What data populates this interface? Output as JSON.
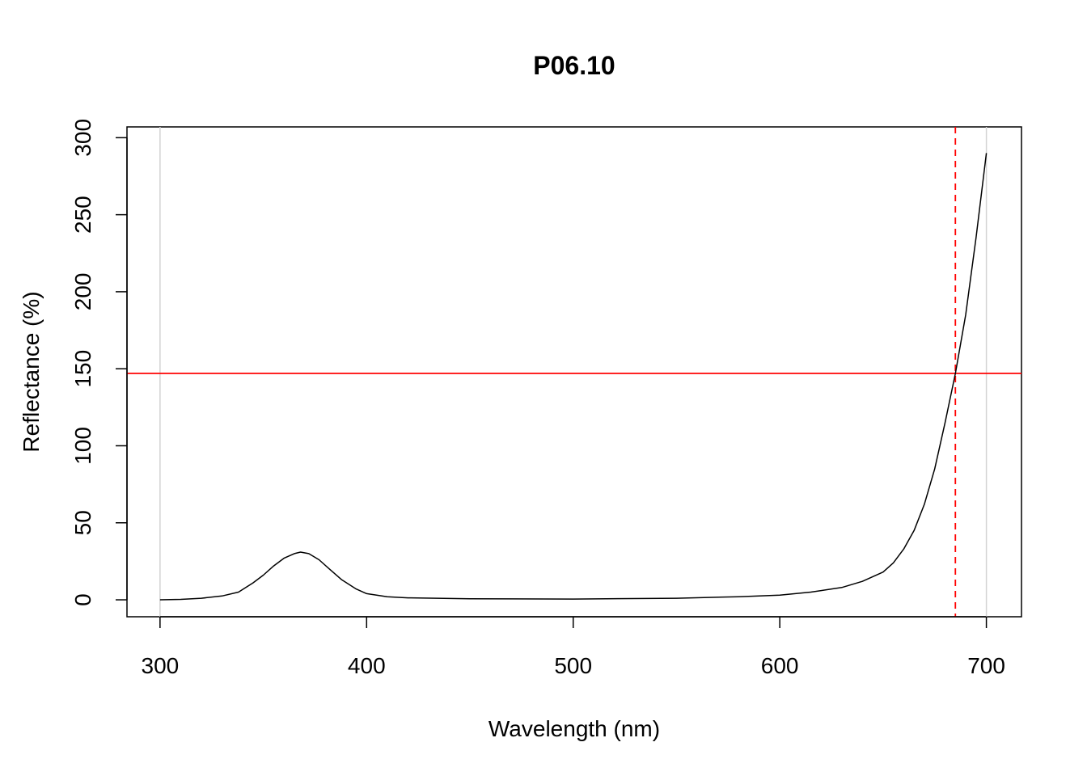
{
  "chart_data": {
    "type": "line",
    "title": "P06.10",
    "xlabel": "Wavelength (nm)",
    "ylabel": "Reflectance (%)",
    "xlim": [
      284,
      717
    ],
    "ylim": [
      -11,
      307
    ],
    "x_ticks": [
      300,
      400,
      500,
      600,
      700
    ],
    "y_ticks": [
      0,
      50,
      100,
      150,
      200,
      250,
      300
    ],
    "grid": false,
    "vertical_reference_lines": {
      "values": [
        300,
        700
      ],
      "color": "#d3d3d3"
    },
    "threshold": {
      "hline_y": 147,
      "vline_x": 685,
      "color": "#ff0000"
    },
    "series": [
      {
        "line_color": "#000000",
        "x": [
          300,
          310,
          320,
          330,
          338,
          345,
          350,
          355,
          360,
          365,
          368,
          372,
          377,
          382,
          388,
          395,
          400,
          410,
          420,
          450,
          500,
          550,
          580,
          600,
          615,
          630,
          640,
          650,
          655,
          660,
          665,
          670,
          675,
          680,
          685,
          690,
          695,
          700
        ],
        "y": [
          0,
          0.3,
          1,
          2.5,
          5,
          11,
          16,
          22,
          27,
          30,
          31,
          30,
          26,
          20,
          13,
          7,
          4,
          2,
          1.3,
          0.7,
          0.5,
          1,
          2,
          3,
          5,
          8,
          12,
          18,
          24,
          33,
          45,
          62,
          85,
          115,
          147,
          185,
          235,
          290
        ]
      }
    ]
  }
}
